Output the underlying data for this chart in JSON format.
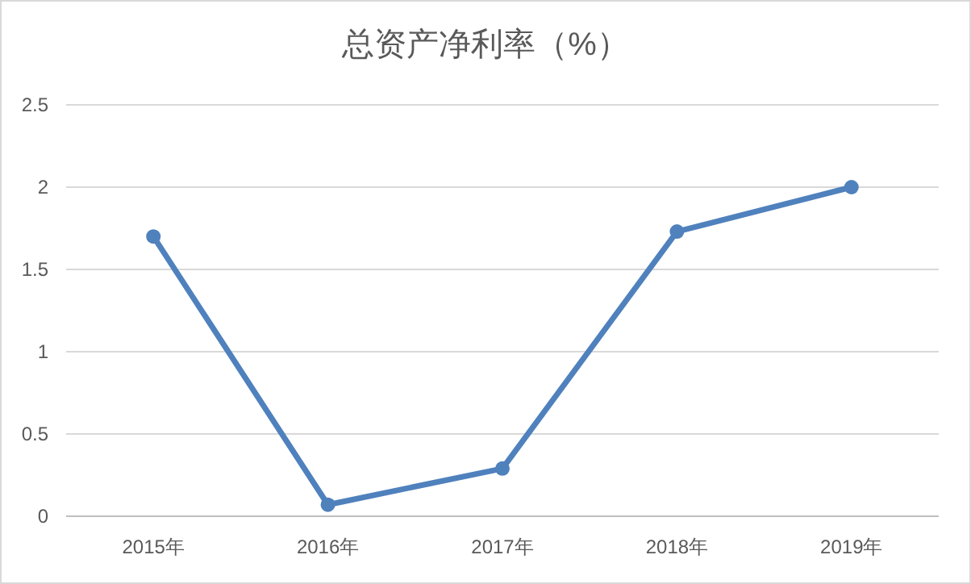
{
  "chart_data": {
    "type": "line",
    "title": "总资产净利率（%）",
    "categories": [
      "2015年",
      "2016年",
      "2017年",
      "2018年",
      "2019年"
    ],
    "series": [
      {
        "color": "#4f81bd",
        "values": [
          1.7,
          0.07,
          0.29,
          1.73,
          2.0
        ]
      }
    ],
    "ylim": [
      0,
      2.5
    ],
    "yticks": [
      0,
      0.5,
      1,
      1.5,
      2,
      2.5
    ],
    "grid": "y",
    "marker": "circle",
    "line_style": "solid"
  }
}
